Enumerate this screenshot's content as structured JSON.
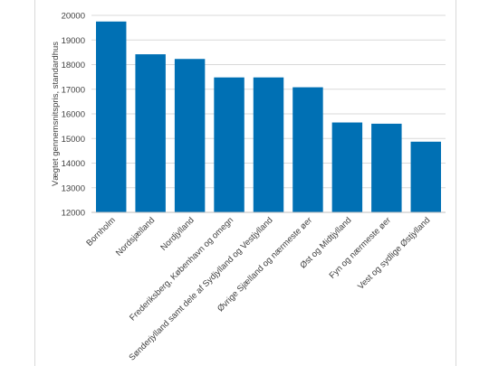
{
  "chart_data": {
    "type": "bar",
    "title": "",
    "xlabel": "",
    "ylabel": "Vægtet gennemsnitspris, standardhus",
    "ylim": [
      12000,
      20000
    ],
    "yticks": [
      12000,
      13000,
      14000,
      15000,
      16000,
      17000,
      18000,
      19000,
      20000
    ],
    "grid": true,
    "bar_color": "#0070b4",
    "grid_color": "#d9d9d9",
    "categories": [
      "Bornholm",
      "Nordsjælland",
      "Nordjylland",
      "Frederiksberg, København og omegn",
      "Sønderjylland samt dele af Sydjylland og Vestjylland",
      "Øvrige Sjælland og nærmeste øer",
      "Øst og Midtjylland",
      "Fyn og nærmeste øer",
      "Vest og sydlige Østjylland"
    ],
    "values": [
      19750,
      18420,
      18230,
      17480,
      17480,
      17080,
      15650,
      15600,
      14870
    ]
  }
}
